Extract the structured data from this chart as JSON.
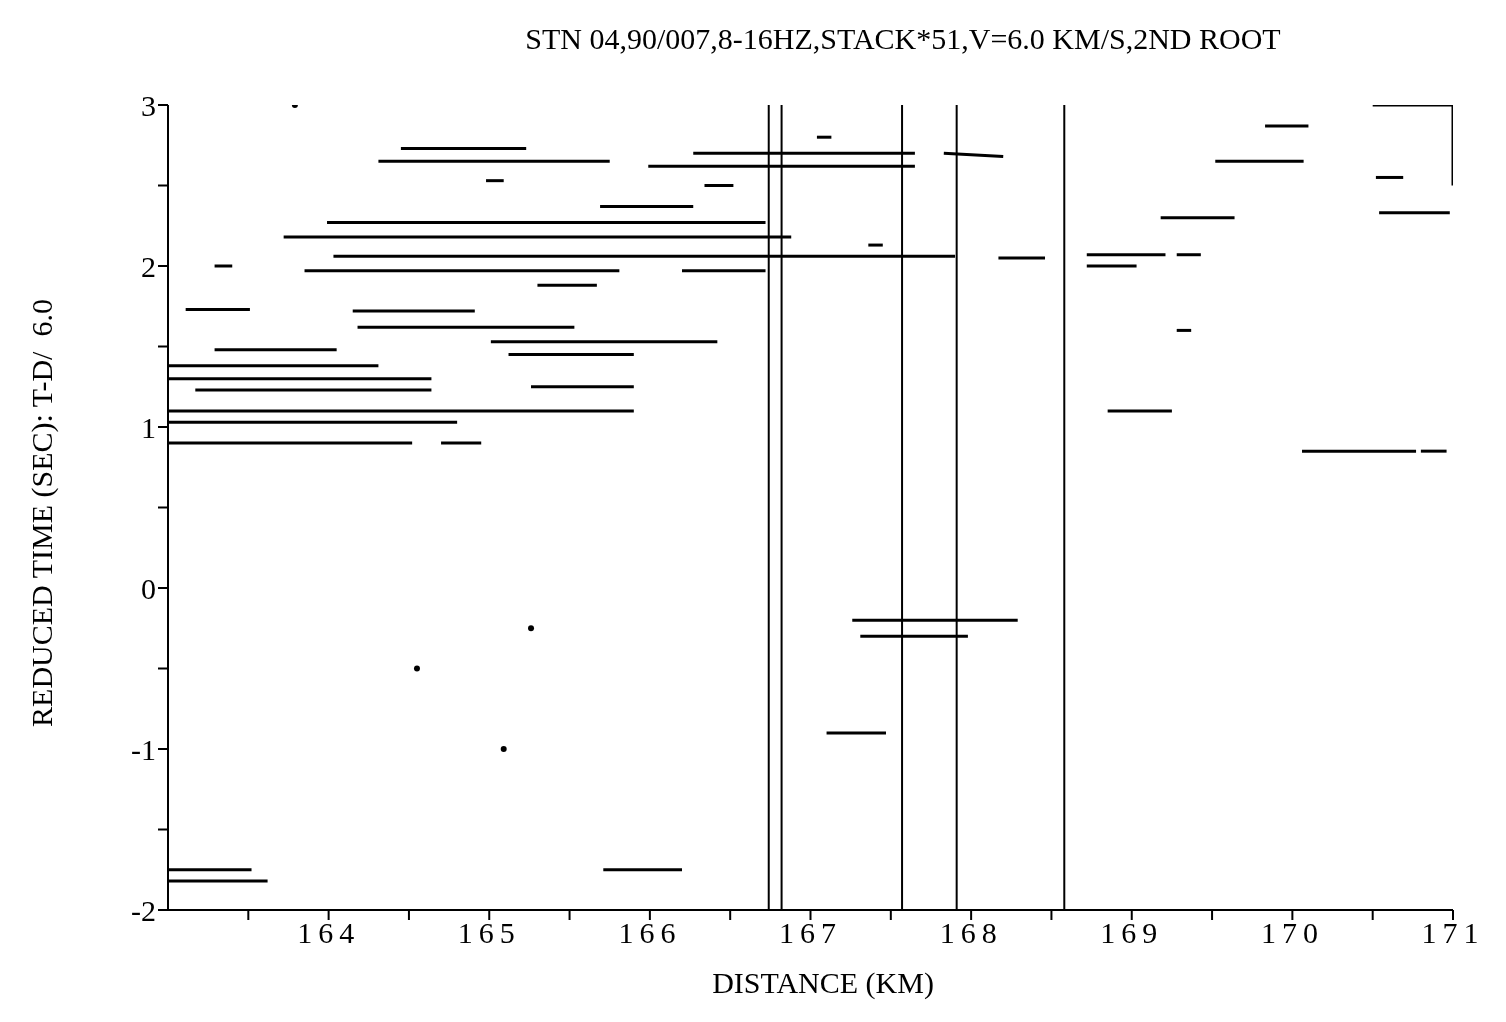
{
  "chart_data": {
    "type": "line",
    "title": "STN 04,90/007,8-16HZ,STACK*51,V=6.0 KM/S,2ND ROOT",
    "xlabel": "DISTANCE (KM)",
    "ylabel": "REDUCED TIME (SEC): T-D/  6.0",
    "color": "#000000",
    "line_style": "solid",
    "grid": false,
    "legend": false,
    "xlim": [
      163,
      171
    ],
    "ylim": [
      -2,
      3
    ],
    "xticks": [
      {
        "value": 163.5,
        "label": null
      },
      164,
      {
        "value": 164.5,
        "label": null
      },
      165,
      {
        "value": 165.5,
        "label": null
      },
      166,
      {
        "value": 166.5,
        "label": null
      },
      167,
      {
        "value": 167.5,
        "label": null
      },
      168,
      {
        "value": 168.5,
        "label": null
      },
      169,
      {
        "value": 169.5,
        "label": null
      },
      170,
      {
        "value": 170.5,
        "label": null
      },
      171
    ],
    "yticks": [
      -2,
      {
        "value": -1.5,
        "label": null
      },
      -1,
      {
        "value": -0.5,
        "label": null
      },
      0,
      {
        "value": 0.5,
        "label": null
      },
      1,
      {
        "value": 1.5,
        "label": null
      },
      2,
      {
        "value": 2.5,
        "label": null
      },
      3
    ],
    "ref_lines": [
      {
        "axis": "x",
        "value": 166.74
      },
      {
        "axis": "x",
        "value": 166.82
      },
      {
        "axis": "x",
        "value": 167.57
      },
      {
        "axis": "x",
        "value": 167.91
      },
      {
        "axis": "x",
        "value": 168.58
      }
    ],
    "series": [
      {
        "x": [
          164.45,
          165.23
        ],
        "values": [
          2.73,
          2.73
        ]
      },
      {
        "x": [
          164.31,
          165.75
        ],
        "values": [
          2.65,
          2.65
        ]
      },
      {
        "x": [
          164.98,
          165.09
        ],
        "values": [
          2.53,
          2.53
        ]
      },
      {
        "x": [
          163.99,
          166.72
        ],
        "values": [
          2.27,
          2.27
        ]
      },
      {
        "x": [
          163.72,
          166.88
        ],
        "values": [
          2.18,
          2.18
        ]
      },
      {
        "x": [
          164.03,
          167.9
        ],
        "values": [
          2.06,
          2.06
        ]
      },
      {
        "x": [
          163.85,
          165.81
        ],
        "values": [
          1.97,
          1.97
        ]
      },
      {
        "x": [
          166.2,
          166.72
        ],
        "values": [
          1.97,
          1.97
        ]
      },
      {
        "x": [
          163.29,
          163.4
        ],
        "values": [
          2.0,
          2.0
        ]
      },
      {
        "x": [
          165.3,
          165.67
        ],
        "values": [
          1.88,
          1.88
        ]
      },
      {
        "x": [
          163.11,
          163.51
        ],
        "values": [
          1.73,
          1.73
        ]
      },
      {
        "x": [
          164.15,
          164.91
        ],
        "values": [
          1.72,
          1.72
        ]
      },
      {
        "x": [
          164.18,
          165.53
        ],
        "values": [
          1.62,
          1.62
        ]
      },
      {
        "x": [
          165.01,
          166.42
        ],
        "values": [
          1.53,
          1.53
        ]
      },
      {
        "x": [
          165.12,
          165.9
        ],
        "values": [
          1.45,
          1.45
        ]
      },
      {
        "x": [
          163.29,
          164.05
        ],
        "values": [
          1.48,
          1.48
        ]
      },
      {
        "x": [
          163.0,
          164.31
        ],
        "values": [
          1.38,
          1.38
        ]
      },
      {
        "x": [
          163.0,
          164.64
        ],
        "values": [
          1.3,
          1.3
        ]
      },
      {
        "x": [
          163.17,
          164.64
        ],
        "values": [
          1.23,
          1.23
        ]
      },
      {
        "x": [
          165.26,
          165.9
        ],
        "values": [
          1.25,
          1.25
        ]
      },
      {
        "x": [
          163.0,
          165.9
        ],
        "values": [
          1.1,
          1.1
        ]
      },
      {
        "x": [
          163.0,
          164.8
        ],
        "values": [
          1.03,
          1.03
        ]
      },
      {
        "x": [
          163.0,
          164.52
        ],
        "values": [
          0.9,
          0.9
        ]
      },
      {
        "x": [
          164.7,
          164.95
        ],
        "values": [
          0.9,
          0.9
        ]
      },
      {
        "x": [
          166.27,
          167.65
        ],
        "values": [
          2.7,
          2.7
        ]
      },
      {
        "x": [
          167.83,
          168.2
        ],
        "values": [
          2.7,
          2.68
        ]
      },
      {
        "x": [
          165.99,
          167.65
        ],
        "values": [
          2.62,
          2.62
        ]
      },
      {
        "x": [
          166.34,
          166.52
        ],
        "values": [
          2.5,
          2.5
        ]
      },
      {
        "x": [
          165.69,
          166.27
        ],
        "values": [
          2.37,
          2.37
        ]
      },
      {
        "x": [
          167.04,
          167.13
        ],
        "values": [
          2.8,
          2.8
        ]
      },
      {
        "x": [
          167.36,
          167.45
        ],
        "values": [
          2.13,
          2.13
        ]
      },
      {
        "x": [
          168.17,
          168.46
        ],
        "values": [
          2.05,
          2.05
        ]
      },
      {
        "x": [
          168.72,
          169.03
        ],
        "values": [
          2.0,
          2.0
        ]
      },
      {
        "x": [
          168.72,
          169.21
        ],
        "values": [
          2.07,
          2.07
        ]
      },
      {
        "x": [
          169.28,
          169.43
        ],
        "values": [
          2.07,
          2.07
        ]
      },
      {
        "x": [
          169.18,
          169.64
        ],
        "values": [
          2.3,
          2.3
        ]
      },
      {
        "x": [
          169.52,
          170.07
        ],
        "values": [
          2.65,
          2.65
        ]
      },
      {
        "x": [
          169.83,
          170.1
        ],
        "values": [
          2.87,
          2.87
        ]
      },
      {
        "x": [
          170.52,
          170.69
        ],
        "values": [
          2.55,
          2.55
        ]
      },
      {
        "x": [
          170.54,
          170.98
        ],
        "values": [
          2.33,
          2.33
        ]
      },
      {
        "x": [
          169.28,
          169.37
        ],
        "values": [
          1.6,
          1.6
        ]
      },
      {
        "x": [
          168.85,
          169.25
        ],
        "values": [
          1.1,
          1.1
        ]
      },
      {
        "x": [
          170.06,
          170.77
        ],
        "values": [
          0.85,
          0.85
        ]
      },
      {
        "x": [
          170.8,
          170.96
        ],
        "values": [
          0.85,
          0.85
        ]
      },
      {
        "x": [
          167.26,
          168.29
        ],
        "values": [
          -0.2,
          -0.2
        ]
      },
      {
        "x": [
          167.31,
          167.98
        ],
        "values": [
          -0.3,
          -0.3
        ]
      },
      {
        "x": [
          167.1,
          167.47
        ],
        "values": [
          -0.9,
          -0.9
        ]
      },
      {
        "x": [
          163.0,
          163.52
        ],
        "values": [
          -1.75,
          -1.75
        ]
      },
      {
        "x": [
          163.0,
          163.62
        ],
        "values": [
          -1.82,
          -1.82
        ]
      },
      {
        "x": [
          165.71,
          166.2
        ],
        "values": [
          -1.75,
          -1.75
        ]
      },
      {
        "x": [
          170.5,
          171,
          171
        ],
        "values": [
          3,
          3,
          2.5
        ]
      },
      {
        "type": "scatter",
        "x": [
          165.26,
          164.55,
          165.09,
          163.79
        ],
        "values": [
          -0.25,
          -0.5,
          -1.0,
          3.0
        ]
      }
    ]
  }
}
